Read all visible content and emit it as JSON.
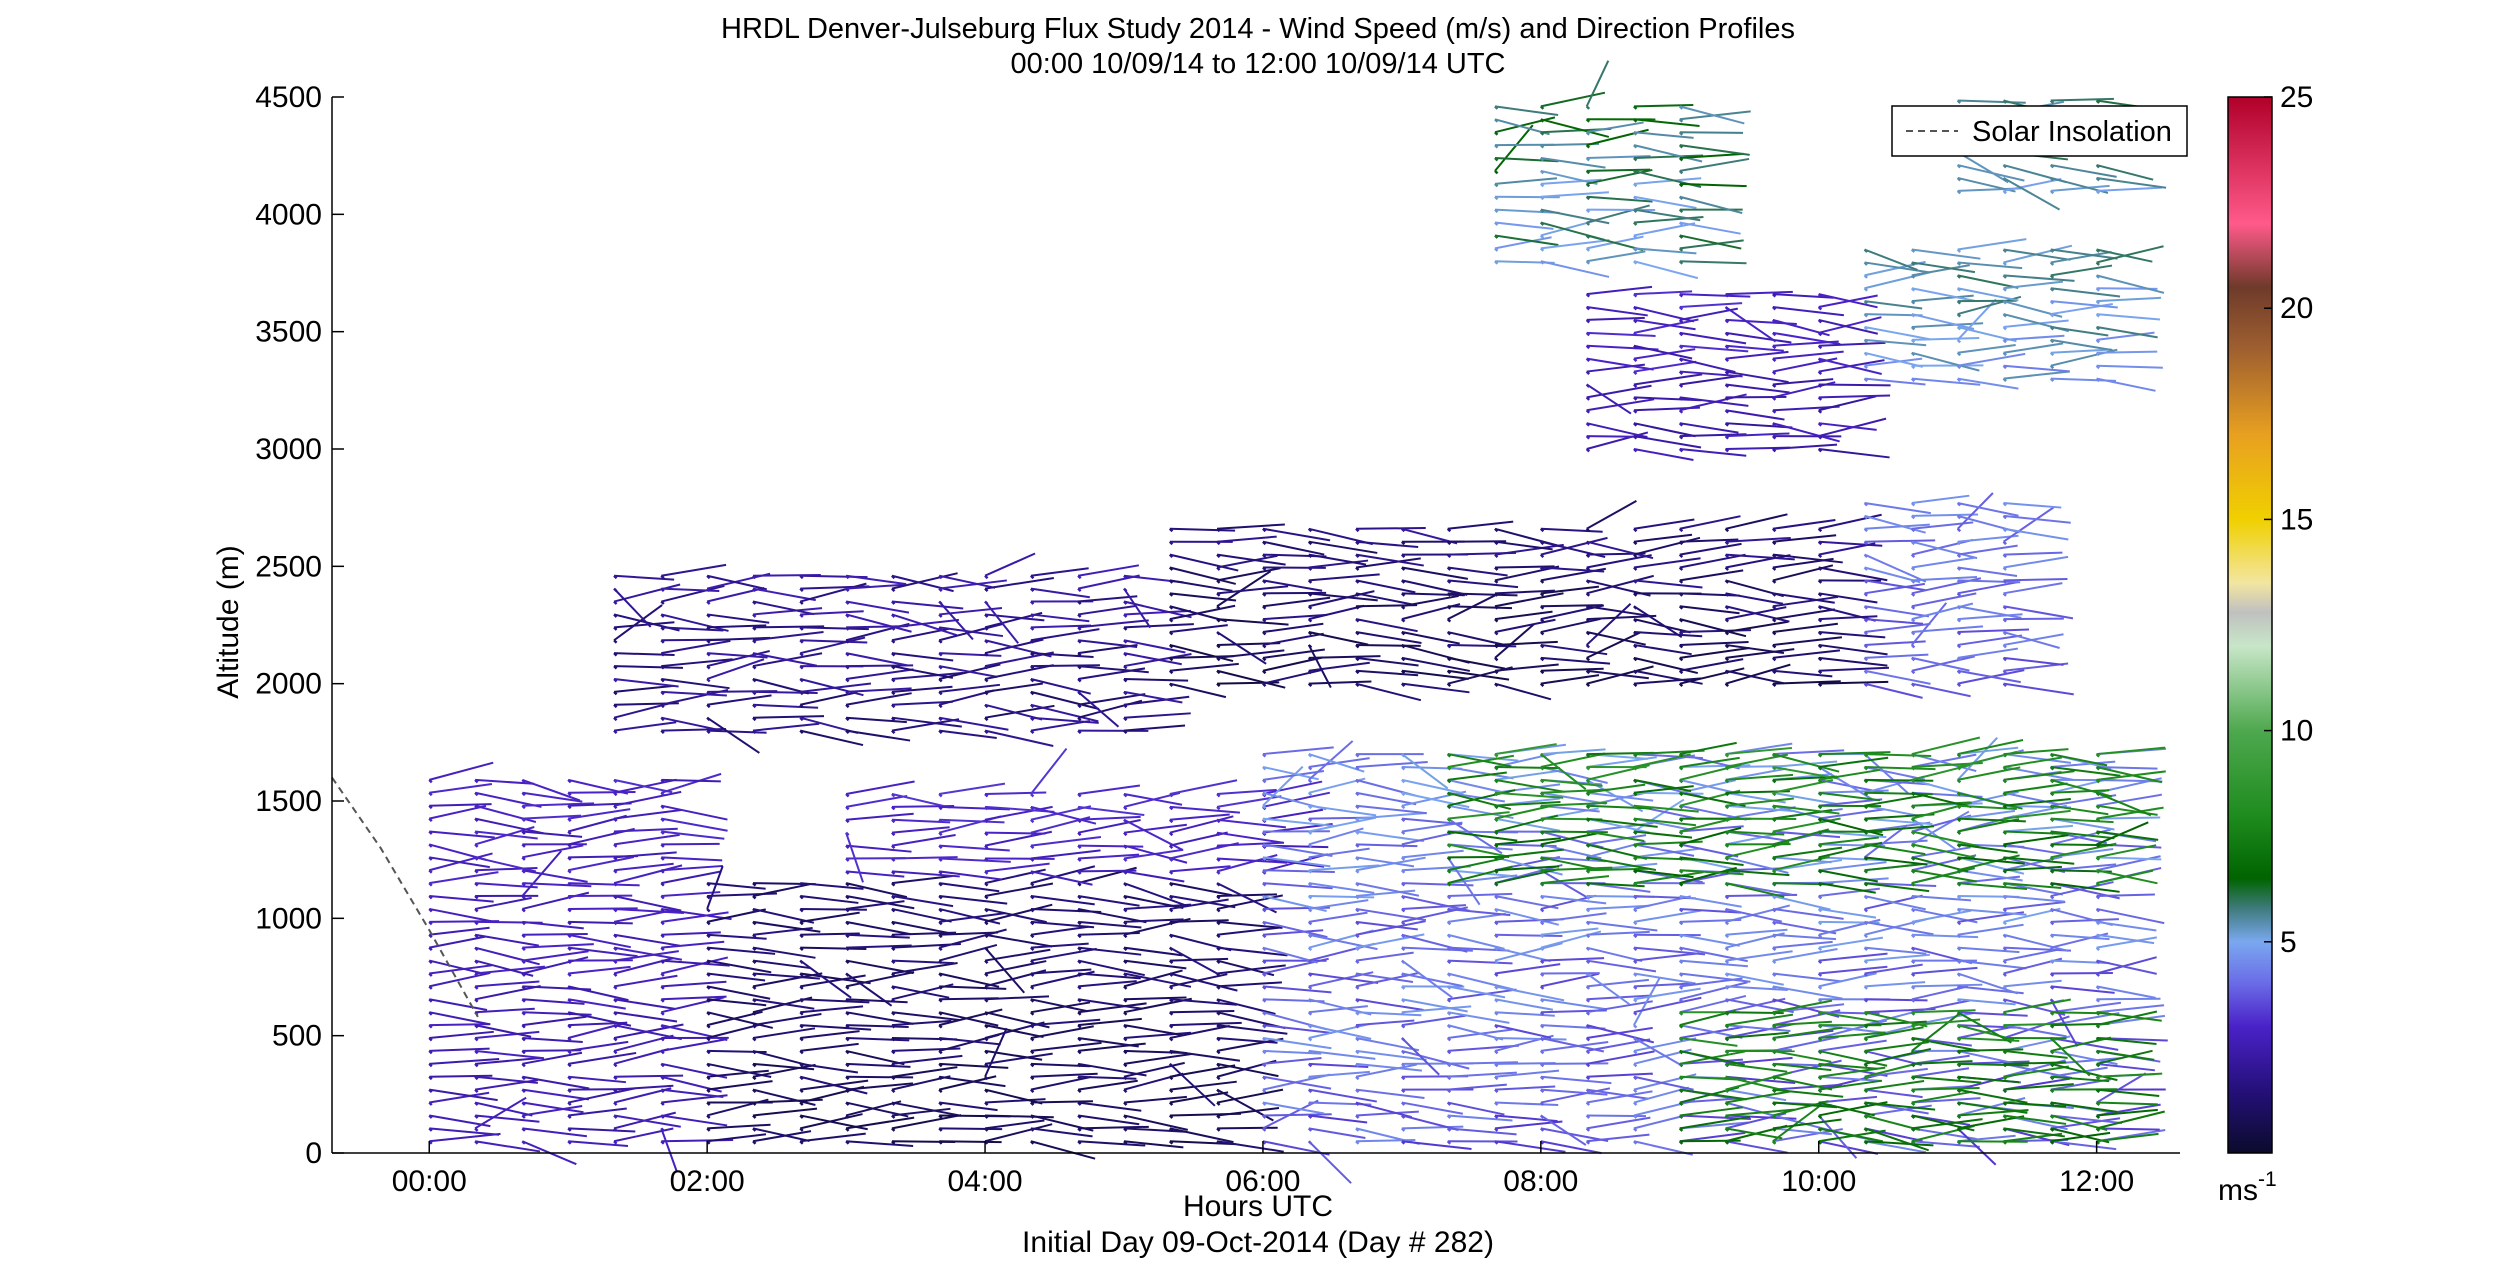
{
  "chart_data": {
    "type": "wind-barb-profile",
    "title": "HRDL Denver-Julseburg Flux Study 2014 - Wind Speed (m/s) and Direction Profiles",
    "subtitle": "00:00 10/09/14 to 12:00 10/09/14  UTC",
    "xlabel": "Hours UTC",
    "xlabel2": "Initial Day 09-Oct-2014 (Day # 282)",
    "ylabel": "Altitude (m)",
    "x_unit": "hours",
    "xlim": [
      -0.7,
      12.6
    ],
    "ylim": [
      0,
      4500
    ],
    "x_ticks": [
      {
        "value": 0,
        "label": "00:00"
      },
      {
        "value": 2,
        "label": "02:00"
      },
      {
        "value": 4,
        "label": "04:00"
      },
      {
        "value": 6,
        "label": "06:00"
      },
      {
        "value": 8,
        "label": "08:00"
      },
      {
        "value": 10,
        "label": "10:00"
      },
      {
        "value": 12,
        "label": "12:00"
      }
    ],
    "y_ticks": [
      {
        "value": 0,
        "label": "0"
      },
      {
        "value": 500,
        "label": "500"
      },
      {
        "value": 1000,
        "label": "1000"
      },
      {
        "value": 1500,
        "label": "1500"
      },
      {
        "value": 2000,
        "label": "2000"
      },
      {
        "value": 2500,
        "label": "2500"
      },
      {
        "value": 3000,
        "label": "3000"
      },
      {
        "value": 3500,
        "label": "3500"
      },
      {
        "value": 4000,
        "label": "4000"
      },
      {
        "value": 4500,
        "label": "4500"
      }
    ],
    "grid": false,
    "legend": {
      "position": "top-right",
      "entries": [
        {
          "name": "Solar Insolation",
          "style": "dashed",
          "color": "#555555"
        }
      ]
    },
    "solar_insolation": {
      "x": [
        -0.7,
        -0.35,
        0.0,
        0.35
      ],
      "y": [
        1600,
        1300,
        950,
        580
      ]
    },
    "colorbar": {
      "unit_label": "ms",
      "unit_exponent": "-1",
      "range": [
        0,
        25
      ],
      "ticks": [
        {
          "value": 5,
          "label": "5"
        },
        {
          "value": 10,
          "label": "10"
        },
        {
          "value": 15,
          "label": "15"
        },
        {
          "value": 20,
          "label": "20"
        },
        {
          "value": 25,
          "label": "25"
        }
      ],
      "colors": [
        {
          "v": 0,
          "c": "#0b0b2c"
        },
        {
          "v": 1.5,
          "c": "#25107a"
        },
        {
          "v": 3,
          "c": "#4a22c8"
        },
        {
          "v": 4,
          "c": "#6a6ae6"
        },
        {
          "v": 5,
          "c": "#7aa8f0"
        },
        {
          "v": 5.8,
          "c": "#3e7a7a"
        },
        {
          "v": 6.5,
          "c": "#006400"
        },
        {
          "v": 8,
          "c": "#1f8c1f"
        },
        {
          "v": 10,
          "c": "#4ea84e"
        },
        {
          "v": 12,
          "c": "#c8e6c8"
        },
        {
          "v": 12.8,
          "c": "#c0c0c0"
        },
        {
          "v": 13.5,
          "c": "#f2e6a0"
        },
        {
          "v": 15,
          "c": "#f0d000"
        },
        {
          "v": 17,
          "c": "#e8a020"
        },
        {
          "v": 19,
          "c": "#a06030"
        },
        {
          "v": 20.5,
          "c": "#6e3a2a"
        },
        {
          "v": 22,
          "c": "#ff5a8a"
        },
        {
          "v": 25,
          "c": "#b0002a"
        }
      ]
    },
    "profile_times": [
      0.0,
      0.33,
      0.67,
      1.0,
      1.33,
      1.67,
      2.0,
      2.33,
      2.67,
      3.0,
      3.33,
      3.67,
      4.0,
      4.33,
      4.67,
      5.0,
      5.33,
      5.67,
      6.0,
      6.33,
      6.67,
      7.0,
      7.33,
      7.67,
      8.0,
      8.33,
      8.67,
      9.0,
      9.33,
      9.67,
      10.0,
      10.33,
      10.67,
      11.0,
      11.33,
      11.67,
      12.0,
      12.33
    ],
    "layers": [
      {
        "t0": 0.0,
        "t1": 1.7,
        "z0": 50,
        "z1": 1600,
        "speed": [
          2.2,
          3.2
        ]
      },
      {
        "t0": 1.8,
        "t1": 5.7,
        "z0": 50,
        "z1": 1200,
        "speed": [
          0.6,
          1.8
        ]
      },
      {
        "t0": 3.0,
        "t1": 6.0,
        "z0": 1200,
        "z1": 1550,
        "speed": [
          2.6,
          3.4
        ]
      },
      {
        "t0": 5.8,
        "t1": 12.3,
        "z0": 50,
        "z1": 1700,
        "speed": [
          3.2,
          5.2
        ]
      },
      {
        "t0": 7.3,
        "t1": 12.3,
        "z0": 1150,
        "z1": 1750,
        "speed": [
          6.2,
          9.0
        ]
      },
      {
        "t0": 9.0,
        "t1": 12.2,
        "z0": 50,
        "z1": 650,
        "speed": [
          6.5,
          8.5
        ]
      },
      {
        "t0": 1.2,
        "t1": 5.3,
        "z0": 1800,
        "z1": 2500,
        "speed": [
          1.0,
          2.8
        ]
      },
      {
        "t0": 5.3,
        "t1": 10.3,
        "z0": 2000,
        "z1": 2700,
        "speed": [
          0.4,
          2.2
        ]
      },
      {
        "t0": 10.3,
        "t1": 11.5,
        "z0": 2000,
        "z1": 2800,
        "speed": [
          3.4,
          4.8
        ]
      },
      {
        "t0": 8.3,
        "t1": 10.3,
        "z0": 3000,
        "z1": 3700,
        "speed": [
          2.0,
          3.4
        ]
      },
      {
        "t0": 10.3,
        "t1": 12.2,
        "z0": 3300,
        "z1": 3900,
        "speed": [
          4.2,
          6.2
        ]
      },
      {
        "t0": 7.5,
        "t1": 9.3,
        "z0": 3800,
        "z1": 4500,
        "speed": [
          4.5,
          7.0
        ]
      },
      {
        "t0": 10.8,
        "t1": 12.2,
        "z0": 4100,
        "z1": 4500,
        "speed": [
          4.8,
          6.5
        ]
      }
    ]
  }
}
